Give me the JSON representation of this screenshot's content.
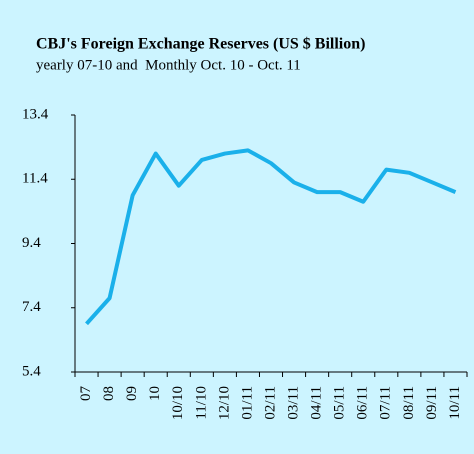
{
  "chart_data": {
    "type": "line",
    "title": "CBJ's Foreign Exchange Reserves (US $ Billion)",
    "subtitle": "yearly 07-10 and  Monthly Oct. 10 - Oct. 11",
    "categories": [
      "07",
      "08",
      "09",
      "10",
      "10/10",
      "11/10",
      "12/10",
      "01/11",
      "02/11",
      "03/11",
      "04/11",
      "05/11",
      "06/11",
      "07/11",
      "08/11",
      "09/11",
      "10/11"
    ],
    "series": [
      {
        "name": "Reserves",
        "color": "#1ab0ea",
        "values": [
          6.9,
          7.7,
          10.9,
          12.2,
          11.2,
          12.0,
          12.2,
          12.3,
          11.9,
          11.3,
          11.0,
          11.0,
          10.7,
          11.7,
          11.6,
          11.3,
          11.0
        ]
      }
    ],
    "ylim": [
      5.4,
      13.4
    ],
    "yticks": [
      5.4,
      7.4,
      9.4,
      11.4,
      13.4
    ],
    "grid": false
  }
}
